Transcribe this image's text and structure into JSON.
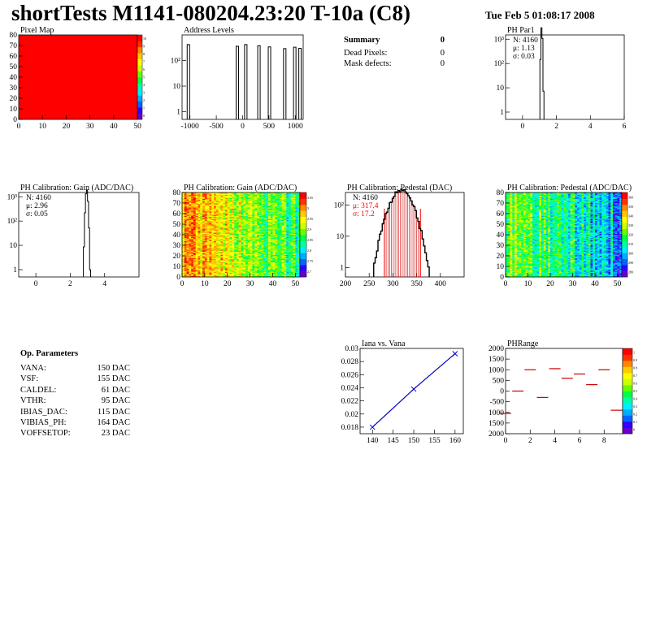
{
  "header": {
    "title": "shortTests M1141-080204.23:20 T-10a (C8)",
    "date": "Tue Feb  5 01:08:17 2008"
  },
  "summary": {
    "title": "Summary",
    "total": "0",
    "rows": [
      {
        "label": "Dead Pixels:",
        "value": "0"
      },
      {
        "label": "Mask defects:",
        "value": "0"
      }
    ]
  },
  "op_params": {
    "title": "Op. Parameters",
    "rows": [
      {
        "label": "VANA:",
        "value": "150 DAC"
      },
      {
        "label": "VSF:",
        "value": "155 DAC"
      },
      {
        "label": "CALDEL:",
        "value": "61 DAC"
      },
      {
        "label": "VTHR:",
        "value": "95 DAC"
      },
      {
        "label": "IBIAS_DAC:",
        "value": "115 DAC"
      },
      {
        "label": "VIBIAS_PH:",
        "value": "164 DAC"
      },
      {
        "label": "VOFFSETOP:",
        "value": "23 DAC"
      }
    ]
  },
  "palette": [
    "#6600cc",
    "#3300ff",
    "#0066ff",
    "#00aaff",
    "#00eeff",
    "#00ffaa",
    "#00ff44",
    "#66ff00",
    "#ccff00",
    "#ffff00",
    "#ffcc00",
    "#ff8800",
    "#ff3300",
    "#ff0000"
  ],
  "chart_data": [
    {
      "id": "pixelmap",
      "type": "heatmap",
      "title": "Pixel Map",
      "xlim": [
        0,
        52
      ],
      "ylim": [
        0,
        80
      ],
      "xticks": [
        0,
        10,
        20,
        30,
        40,
        50
      ],
      "yticks": [
        0,
        10,
        20,
        30,
        40,
        50,
        60,
        70,
        80
      ],
      "fill": "uniform",
      "value": 10,
      "zlim": [
        0,
        10
      ],
      "zticks": [
        "0",
        "1",
        "2",
        "3",
        "4",
        "5",
        "6",
        "7",
        "8",
        "9",
        "10"
      ]
    },
    {
      "id": "addr",
      "type": "histogram",
      "title": "Address Levels",
      "ylog": true,
      "xlim": [
        -1150,
        1150
      ],
      "ylim": [
        0.5,
        1000
      ],
      "xticks": [
        -1000,
        -500,
        0,
        500,
        1000
      ],
      "yticks": [
        {
          "v": 1,
          "l": "1"
        },
        {
          "v": 10,
          "l": "10"
        },
        {
          "v": 100,
          "l": "10²"
        }
      ],
      "peaks": [
        {
          "x": -1030,
          "h": 420
        },
        {
          "x": -100,
          "h": 360
        },
        {
          "x": 60,
          "h": 420
        },
        {
          "x": 310,
          "h": 380
        },
        {
          "x": 510,
          "h": 340
        },
        {
          "x": 800,
          "h": 290
        },
        {
          "x": 990,
          "h": 330
        },
        {
          "x": 1090,
          "h": 300
        }
      ]
    },
    {
      "id": "phpar1",
      "type": "histogram",
      "title": "PH Par1",
      "ylog": true,
      "xlim": [
        -1,
        6
      ],
      "ylim": [
        0.5,
        1500
      ],
      "xticks": [
        0,
        2,
        4,
        6
      ],
      "yticks": [
        {
          "v": 1,
          "l": "1"
        },
        {
          "v": 10,
          "l": "10"
        },
        {
          "v": 100,
          "l": "10²"
        },
        {
          "v": 1000,
          "l": "10³"
        }
      ],
      "gauss": {
        "n": 4160,
        "mu": 1.13,
        "sigma": 0.03
      },
      "stats": [
        "N: 4160",
        "μ: 1.13",
        "σ: 0.03"
      ]
    },
    {
      "id": "gain1d",
      "type": "histogram",
      "title": "PH Calibration: Gain (ADC/DAC)",
      "ylog": true,
      "xlim": [
        -1,
        6
      ],
      "ylim": [
        0.5,
        1500
      ],
      "xticks": [
        0,
        2,
        4
      ],
      "yticks": [
        {
          "v": 1,
          "l": "1"
        },
        {
          "v": 10,
          "l": "10"
        },
        {
          "v": 100,
          "l": "10²"
        },
        {
          "v": 1000,
          "l": "10³"
        }
      ],
      "gauss": {
        "n": 4160,
        "mu": 2.96,
        "sigma": 0.05
      },
      "stats": [
        "N: 4160",
        "μ: 2.96",
        "σ: 0.05"
      ]
    },
    {
      "id": "gainmap",
      "type": "heatmap",
      "title": "PH Calibration: Gain (ADC/DAC)",
      "xlim": [
        0,
        52
      ],
      "ylim": [
        0,
        80
      ],
      "xticks": [
        0,
        10,
        20,
        30,
        40,
        50
      ],
      "yticks": [
        0,
        10,
        20,
        30,
        40,
        50,
        60,
        70,
        80
      ],
      "fill": "gain",
      "zlim": [
        2.65,
        3.1
      ],
      "zticks": [
        "2.7",
        "2.75",
        "2.8",
        "2.85",
        "2.9",
        "2.95",
        "3",
        "3.05"
      ]
    },
    {
      "id": "ped1d",
      "type": "histogram",
      "title": "PH Calibration: Pedestal (DAC)",
      "ylog": true,
      "xlim": [
        200,
        450
      ],
      "ylim": [
        0.5,
        250
      ],
      "xticks": [
        200,
        250,
        300,
        350,
        400
      ],
      "yticks": [
        {
          "v": 1,
          "l": "1"
        },
        {
          "v": 10,
          "l": "10"
        },
        {
          "v": 100,
          "l": "10²"
        }
      ],
      "gauss": {
        "n": 4160,
        "mu": 317.4,
        "sigma": 17.2
      },
      "cuts": [
        282,
        358
      ],
      "stats": [
        "N: 4160",
        "μ: 317.4",
        "σ: 17.2"
      ]
    },
    {
      "id": "pedmap",
      "type": "heatmap",
      "title": "PH Calibration: Pedestal (ADC/DAC)",
      "xlim": [
        0,
        52
      ],
      "ylim": [
        0,
        80
      ],
      "xticks": [
        0,
        10,
        20,
        30,
        40,
        50
      ],
      "yticks": [
        0,
        10,
        20,
        30,
        40,
        50,
        60,
        70,
        80
      ],
      "fill": "pedestal",
      "zlim": [
        270,
        370
      ],
      "zticks": [
        "280",
        "290",
        "300",
        "310",
        "320",
        "330",
        "340",
        "350",
        "360"
      ]
    },
    {
      "id": "iana",
      "type": "line",
      "title": "Iana vs. Vana",
      "xlim": [
        137,
        162
      ],
      "ylim": [
        0.017,
        0.03
      ],
      "xticks": [
        140,
        145,
        150,
        155,
        160
      ],
      "yticks": [
        0.018,
        0.02,
        0.022,
        0.024,
        0.026,
        0.028,
        0.03
      ],
      "x": [
        140,
        150,
        160
      ],
      "y": [
        0.018,
        0.0238,
        0.0292
      ]
    },
    {
      "id": "phrange",
      "type": "scatter",
      "title": "PHRange",
      "xlim": [
        0,
        9.5
      ],
      "ylim": [
        -2000,
        2000
      ],
      "xticks": [
        0,
        2,
        4,
        6,
        8
      ],
      "yticks": [
        {
          "v": 2000,
          "l": "2000"
        },
        {
          "v": 1500,
          "l": "1500"
        },
        {
          "v": 1000,
          "l": "1000"
        },
        {
          "v": 500,
          "l": "500"
        },
        {
          "v": 0,
          "l": "0"
        },
        {
          "v": -500,
          "l": "-500"
        },
        {
          "v": -1000,
          "l": "1000"
        },
        {
          "v": -1500,
          "l": "1500"
        },
        {
          "v": -2000,
          "l": "2000"
        }
      ],
      "x": [
        0,
        1,
        2,
        3,
        4,
        5,
        6,
        7,
        8,
        9
      ],
      "y": [
        -1050,
        0,
        1000,
        -300,
        1050,
        600,
        800,
        300,
        1000,
        -900
      ],
      "zlim": [
        0,
        1
      ],
      "zticks": [
        "0",
        "0.1",
        "0.2",
        "0.3",
        "0.4",
        "0.5",
        "0.6",
        "0.7",
        "0.8",
        "0.9",
        "1"
      ]
    }
  ]
}
